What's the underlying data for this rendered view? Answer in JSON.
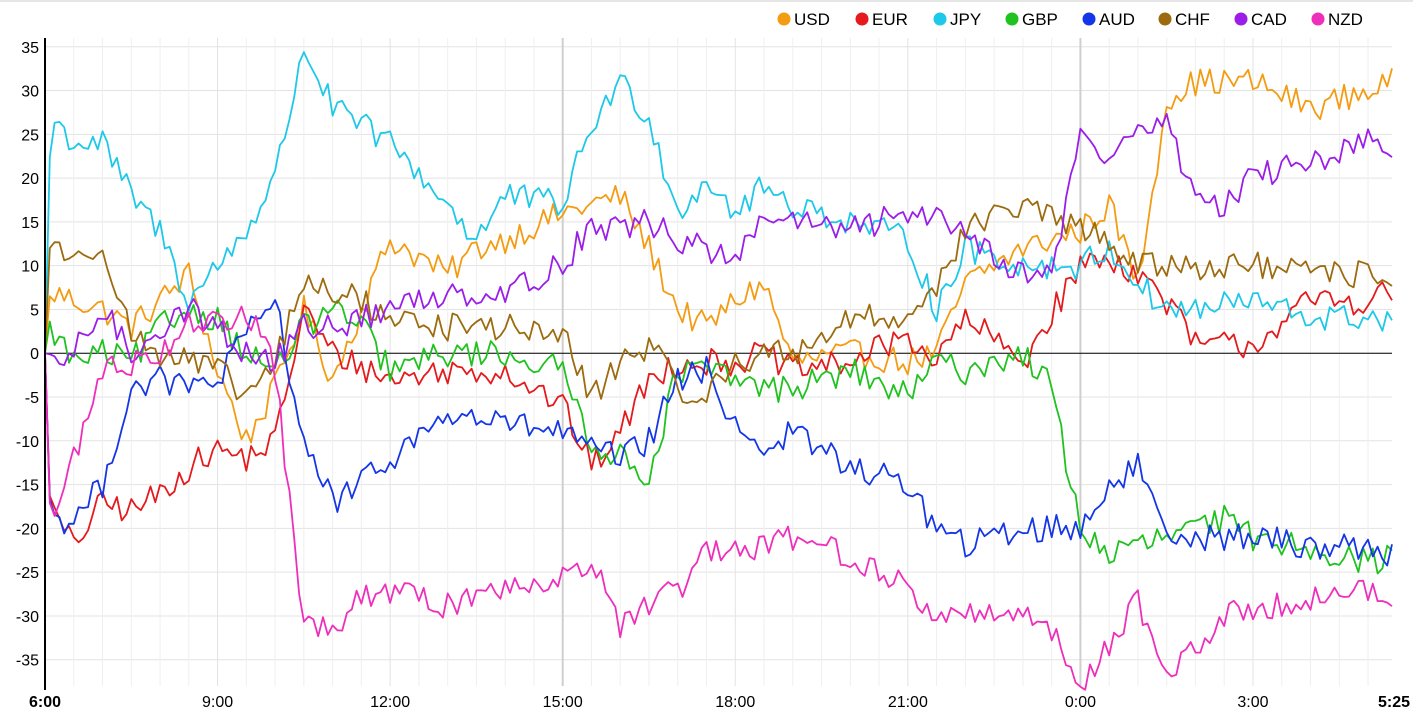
{
  "chart_data": {
    "type": "line",
    "title": "",
    "xlabel": "",
    "ylabel": "",
    "ylim": [
      -38,
      36
    ],
    "yticks": [
      35,
      30,
      25,
      20,
      15,
      10,
      5,
      0,
      -5,
      -10,
      -15,
      -20,
      -25,
      -30,
      -35
    ],
    "xlim_hours": [
      6.0,
      29.4167
    ],
    "xticks": [
      {
        "label": "6:00",
        "hour": 6,
        "bold": true
      },
      {
        "label": "9:00",
        "hour": 9
      },
      {
        "label": "12:00",
        "hour": 12
      },
      {
        "label": "15:00",
        "hour": 15
      },
      {
        "label": "18:00",
        "hour": 18
      },
      {
        "label": "21:00",
        "hour": 21
      },
      {
        "label": "0:00",
        "hour": 24
      },
      {
        "label": "3:00",
        "hour": 27
      },
      {
        "label": "5:25",
        "hour": 29.4167,
        "bold": true
      }
    ],
    "emphasized_gridlines_hours": [
      15,
      24
    ],
    "grid": true,
    "legend_position": "top-right",
    "series": [
      {
        "name": "USD",
        "color": "#f39c12",
        "x": [
          6,
          6.1,
          7,
          7.5,
          8,
          8.5,
          9,
          9.5,
          10,
          10.5,
          11,
          12,
          13,
          13.5,
          14,
          15,
          16,
          16.5,
          17,
          17.5,
          18,
          18.5,
          19,
          20,
          21,
          21.5,
          22,
          23,
          24,
          24.5,
          25,
          25.5,
          26,
          27,
          28,
          29,
          29.42
        ],
        "y": [
          0,
          7,
          5,
          3,
          6,
          9,
          -2,
          -10,
          -4,
          5,
          -3,
          13,
          9,
          12,
          13,
          16,
          18,
          12,
          5,
          3,
          6,
          8,
          -1,
          0,
          -1,
          0,
          8,
          12,
          14,
          17,
          8,
          29,
          31,
          31,
          28,
          30,
          31
        ]
      },
      {
        "name": "EUR",
        "color": "#e41a1c",
        "x": [
          6,
          6.1,
          6.5,
          7,
          7.5,
          8,
          8.5,
          9,
          9.5,
          10,
          10.5,
          11,
          12,
          13,
          14,
          15,
          15.5,
          16,
          16.5,
          17,
          18,
          18.5,
          19,
          20,
          21,
          21.5,
          22,
          23,
          24,
          24.5,
          25,
          25.5,
          26,
          26.5,
          27,
          28,
          29,
          29.42
        ],
        "y": [
          0,
          -18,
          -22,
          -17,
          -18,
          -16,
          -13,
          -11,
          -12,
          -10,
          5,
          0,
          -3,
          -2,
          -2,
          -6,
          -13,
          -9,
          -3,
          -1,
          -1,
          0,
          -2,
          -1,
          2,
          -1,
          4,
          -1,
          10,
          11,
          9,
          6,
          1,
          1,
          1,
          6,
          6,
          7
        ]
      },
      {
        "name": "JPY",
        "color": "#1ec8e8",
        "x": [
          6,
          6.1,
          6.5,
          7,
          7.5,
          8,
          8.5,
          9,
          9.5,
          10,
          10.5,
          11,
          12,
          13,
          13.5,
          14,
          15,
          15.5,
          16,
          16.5,
          17,
          17.5,
          18,
          18.5,
          19,
          20,
          21,
          21.5,
          22,
          23,
          24,
          24.5,
          25,
          25.5,
          26,
          27,
          28,
          29,
          29.42
        ],
        "y": [
          0,
          27,
          24,
          24,
          18,
          14,
          6,
          10,
          14,
          20,
          35,
          28,
          24,
          17,
          13,
          18,
          17,
          26,
          31,
          27,
          16,
          20,
          16,
          19,
          17,
          15,
          13,
          5,
          12,
          10,
          10,
          12,
          8,
          5,
          5,
          6,
          4,
          4,
          4
        ]
      },
      {
        "name": "GBP",
        "color": "#1fc21f",
        "x": [
          6,
          6.1,
          6.5,
          7,
          7.5,
          8,
          8.5,
          9,
          9.5,
          10,
          10.5,
          11,
          11.5,
          12,
          13,
          14,
          15,
          15.5,
          16,
          16.5,
          17,
          17.5,
          18,
          18.5,
          19,
          20,
          21,
          21.5,
          22,
          23,
          23.5,
          24,
          24.5,
          25,
          26,
          26.5,
          27,
          28,
          29,
          29.42
        ],
        "y": [
          0,
          3,
          -1,
          0,
          -1,
          3,
          5,
          4,
          0,
          -2,
          3,
          5,
          3,
          -2,
          0,
          0,
          -2,
          -10,
          -12,
          -14,
          -2,
          -2,
          -3,
          -4,
          -4,
          -2,
          -5,
          -1,
          -2,
          0,
          -4,
          -20,
          -23,
          -22,
          -20,
          -19,
          -21,
          -22,
          -24,
          -23
        ]
      },
      {
        "name": "AUD",
        "color": "#1436e6",
        "x": [
          6,
          6.1,
          6.5,
          7,
          7.5,
          8,
          8.5,
          9,
          9.5,
          10,
          10.5,
          11,
          11.5,
          12,
          13,
          14,
          15,
          15.5,
          16,
          16.5,
          17,
          17.5,
          18,
          18.5,
          19,
          20,
          21,
          21.5,
          22,
          23,
          24,
          24.5,
          25,
          25.5,
          26,
          27,
          28,
          29,
          29.42
        ],
        "y": [
          0,
          -19,
          -19,
          -15,
          -4,
          -3,
          -4,
          -3,
          2,
          6,
          -10,
          -17,
          -15,
          -12,
          -7,
          -8,
          -9,
          -11,
          -12,
          -10,
          -3,
          -2,
          -8,
          -11,
          -9,
          -13,
          -15,
          -20,
          -22,
          -20,
          -20,
          -15,
          -13,
          -20,
          -21,
          -21,
          -22,
          -22,
          -23
        ]
      },
      {
        "name": "CHF",
        "color": "#9c6b0e",
        "x": [
          6,
          6.1,
          6.5,
          7,
          7.5,
          8,
          8.5,
          9,
          9.5,
          10,
          10.5,
          11,
          11.5,
          12,
          13,
          14,
          15,
          15.5,
          16,
          16.5,
          17,
          17.5,
          18,
          18.5,
          19,
          20,
          21,
          21.5,
          22,
          23,
          24,
          24.5,
          25,
          25.5,
          26,
          27,
          28,
          29,
          29.42
        ],
        "y": [
          0,
          14,
          10,
          13,
          2,
          0,
          -1,
          -2,
          -5,
          -1,
          8,
          7,
          6,
          4,
          3,
          3,
          2,
          -5,
          -1,
          1,
          -4,
          -5,
          -1,
          0,
          0,
          4,
          4,
          8,
          14,
          17,
          14,
          13,
          10,
          10,
          10,
          10,
          9,
          9,
          9
        ]
      },
      {
        "name": "CAD",
        "color": "#9b1ee8",
        "x": [
          6,
          6.1,
          6.5,
          7,
          7.5,
          8,
          8.5,
          9,
          9.5,
          10,
          10.5,
          11,
          12,
          13,
          14,
          15,
          15.5,
          16,
          16.5,
          17,
          17.5,
          18,
          18.5,
          19,
          20,
          21,
          21.5,
          22,
          23,
          23.5,
          24,
          24.5,
          25,
          25.5,
          26,
          26.5,
          27,
          28,
          29,
          29.42
        ],
        "y": [
          0,
          -2,
          0,
          5,
          0,
          3,
          5,
          3,
          0,
          -1,
          3,
          3,
          5,
          7,
          7,
          10,
          15,
          14,
          15,
          13,
          12,
          10,
          16,
          15,
          14,
          16,
          16,
          14,
          9,
          9,
          25,
          22,
          26,
          26,
          18,
          17,
          20,
          22,
          24,
          23
        ]
      },
      {
        "name": "NZD",
        "color": "#ee2fbb",
        "x": [
          6,
          6.1,
          6.5,
          7,
          7.5,
          8,
          8.5,
          9,
          9.5,
          10,
          10.5,
          11,
          11.5,
          12,
          13,
          13.5,
          14,
          15,
          15.5,
          16,
          16.5,
          17,
          17.5,
          18,
          18.5,
          19,
          20,
          21,
          21.5,
          22,
          23,
          23.5,
          24,
          24.5,
          25,
          25.5,
          26,
          26.5,
          27,
          28,
          29,
          29.42
        ],
        "y": [
          0,
          -20,
          -12,
          -2,
          -1,
          0,
          4,
          3,
          5,
          -2,
          -31,
          -32,
          -28,
          -27,
          -29,
          -27,
          -27,
          -25,
          -24,
          -31,
          -29,
          -27,
          -23,
          -23,
          -22,
          -21,
          -23,
          -27,
          -30,
          -30,
          -29,
          -32,
          -38,
          -33,
          -28,
          -37,
          -34,
          -30,
          -29,
          -28,
          -27,
          -29
        ]
      }
    ]
  }
}
